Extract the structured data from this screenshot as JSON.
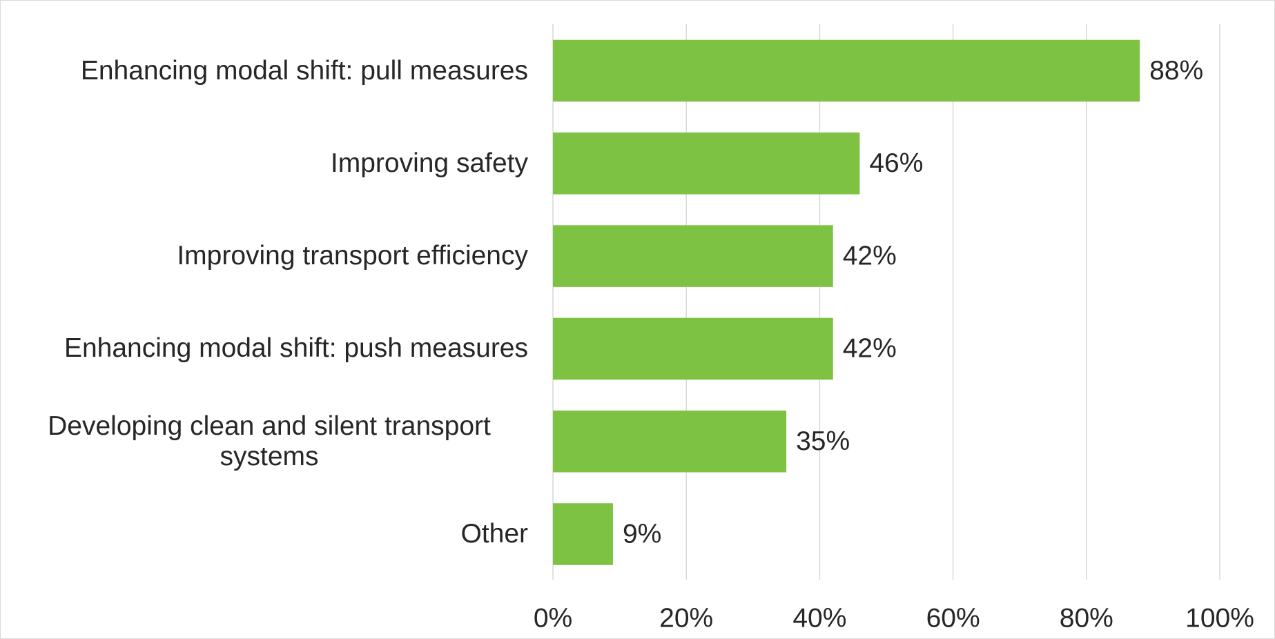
{
  "chart_data": {
    "type": "bar",
    "orientation": "horizontal",
    "categories": [
      "Enhancing modal shift: pull measures",
      "Improving safety",
      "Improving transport efficiency",
      "Enhancing modal shift: push measures",
      "Developing clean and silent transport systems",
      "Other"
    ],
    "values": [
      88,
      46,
      42,
      42,
      35,
      9
    ],
    "value_labels": [
      "88%",
      "46%",
      "42%",
      "42%",
      "35%",
      "9%"
    ],
    "color": "#7dc242",
    "xlim": [
      0,
      100
    ],
    "xticks": [
      {
        "value": 0,
        "label": "0%"
      },
      {
        "value": 20,
        "label": "20%"
      },
      {
        "value": 40,
        "label": "40%"
      },
      {
        "value": 60,
        "label": "60%"
      },
      {
        "value": 80,
        "label": "80%"
      },
      {
        "value": 100,
        "label": "100%"
      }
    ],
    "grid": true
  }
}
